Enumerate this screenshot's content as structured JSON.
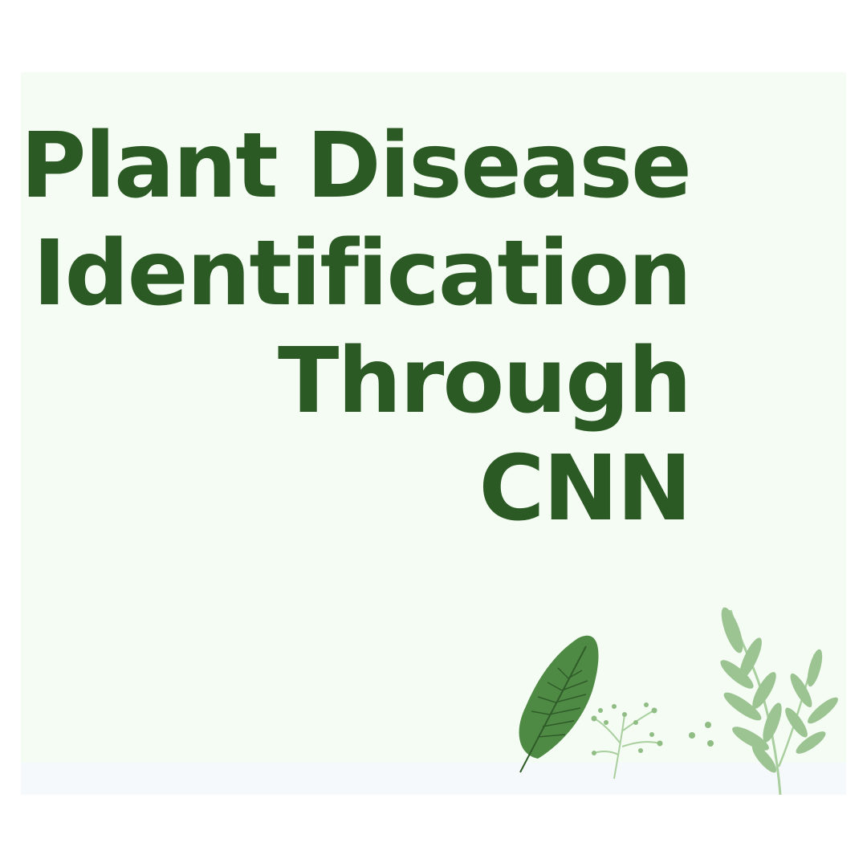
{
  "title": {
    "line1": "Plant Disease",
    "line2": "Identification",
    "line3": "Through",
    "line4": "CNN"
  },
  "colors": {
    "background": "#ffffff",
    "panel": "#f5fcf4",
    "title": "#2c5a25",
    "leaf_dark": "#4f8a45",
    "leaf_light": "#9cc492",
    "sprig": "#a9cf9f"
  },
  "icons": [
    "monstera-leaf-icon",
    "berry-sprig-icon",
    "eucalyptus-branch-icon",
    "dots-icon"
  ]
}
